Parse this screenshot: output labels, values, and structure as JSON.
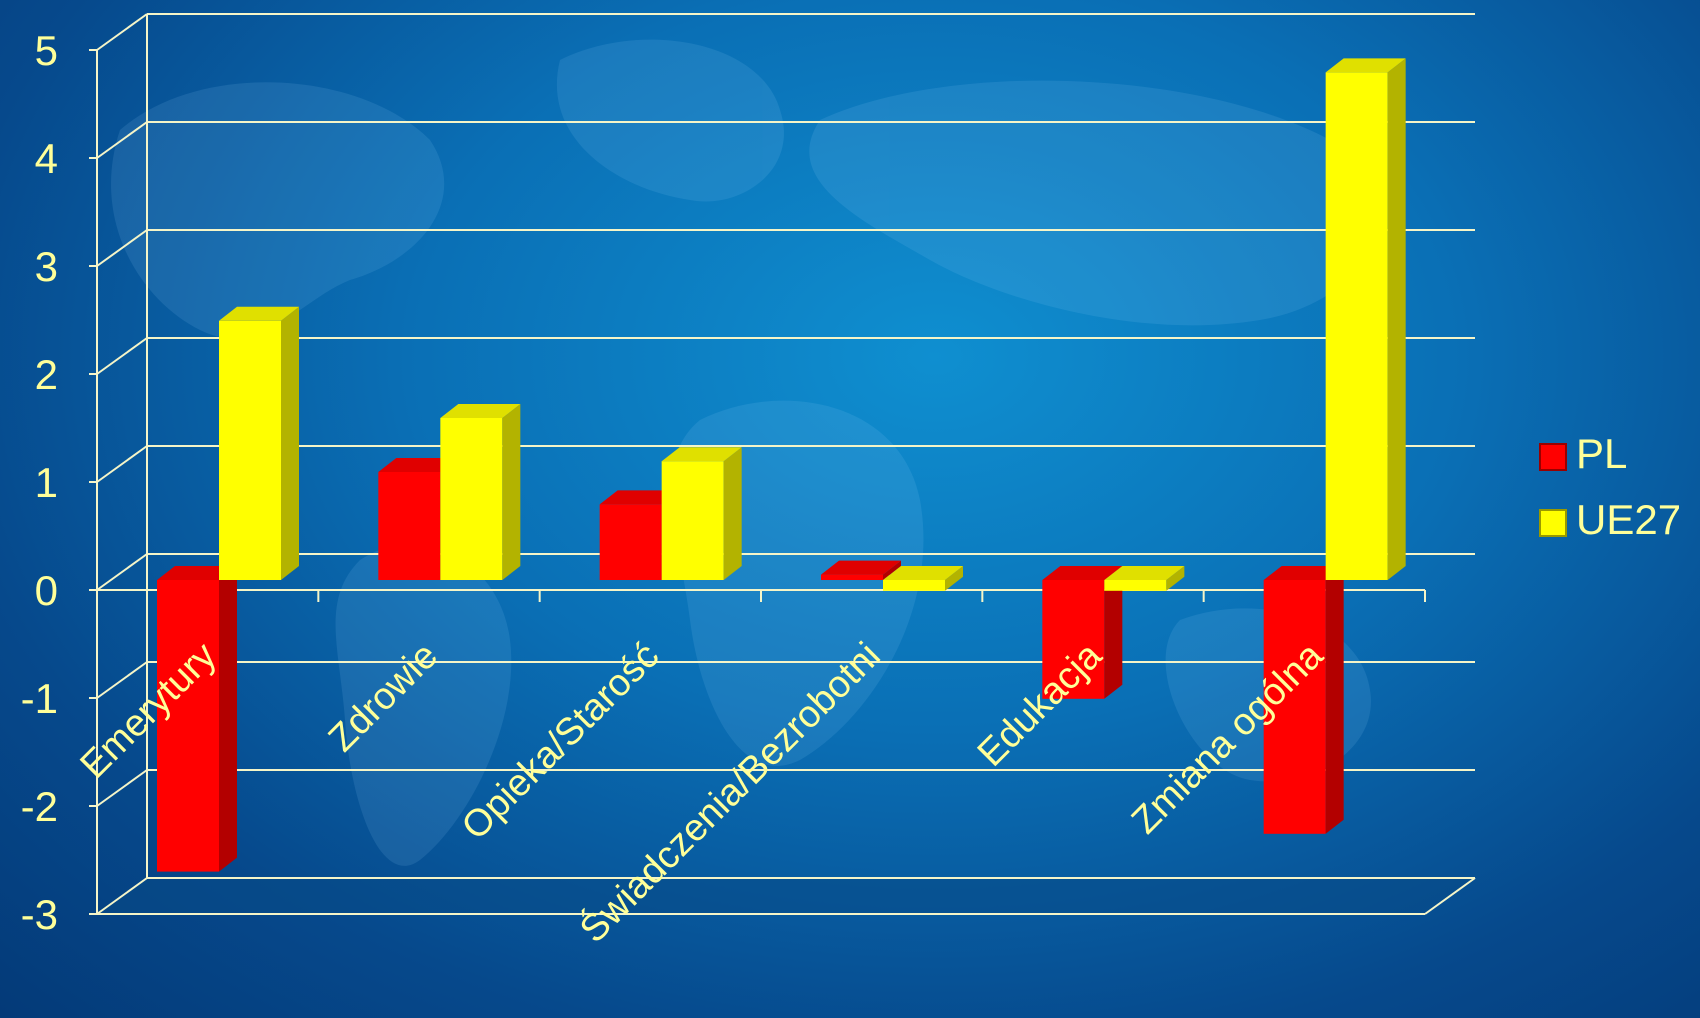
{
  "chart_data": {
    "type": "bar",
    "categories": [
      "Emerytury",
      "Zdrowie",
      "Opieka/Starość",
      "Świadczenia/Bezrobotni",
      "Edukacja",
      "Zmiana ogólna"
    ],
    "series": [
      {
        "name": "PL",
        "values": [
          -2.7,
          1.0,
          0.7,
          0.05,
          -1.1,
          -2.35
        ],
        "color": "#ff0000"
      },
      {
        "name": "UE27",
        "values": [
          2.4,
          1.5,
          1.1,
          -0.1,
          -0.1,
          4.7
        ],
        "color": "#ffff00"
      }
    ],
    "y_ticks": [
      "5",
      "4",
      "3",
      "2",
      "1",
      "0",
      "-1",
      "-2",
      "-3"
    ],
    "ylim": [
      -3,
      5
    ],
    "grid": true,
    "legend_position": "right",
    "background": "#0a6fb5",
    "text_color": "#ffff99"
  }
}
